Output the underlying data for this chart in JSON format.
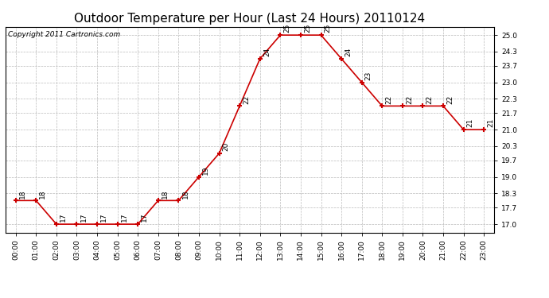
{
  "title": "Outdoor Temperature per Hour (Last 24 Hours) 20110124",
  "copyright": "Copyright 2011 Cartronics.com",
  "hours": [
    "00:00",
    "01:00",
    "02:00",
    "03:00",
    "04:00",
    "05:00",
    "06:00",
    "07:00",
    "08:00",
    "09:00",
    "10:00",
    "11:00",
    "12:00",
    "13:00",
    "14:00",
    "15:00",
    "16:00",
    "17:00",
    "18:00",
    "19:00",
    "20:00",
    "21:00",
    "22:00",
    "23:00"
  ],
  "temps": [
    18,
    18,
    17,
    17,
    17,
    17,
    17,
    18,
    18,
    19,
    20,
    22,
    24,
    25,
    25,
    25,
    24,
    23,
    22,
    22,
    22,
    22,
    21,
    21
  ],
  "line_color": "#cc0000",
  "marker_color": "#cc0000",
  "bg_color": "#ffffff",
  "grid_color": "#bbbbbb",
  "yticks": [
    17.0,
    17.7,
    18.3,
    19.0,
    19.7,
    20.3,
    21.0,
    21.7,
    22.3,
    23.0,
    23.7,
    24.3,
    25.0
  ],
  "ylim": [
    16.65,
    25.35
  ],
  "title_fontsize": 11,
  "label_fontsize": 6.5,
  "tick_fontsize": 6.5,
  "copyright_fontsize": 6.5
}
